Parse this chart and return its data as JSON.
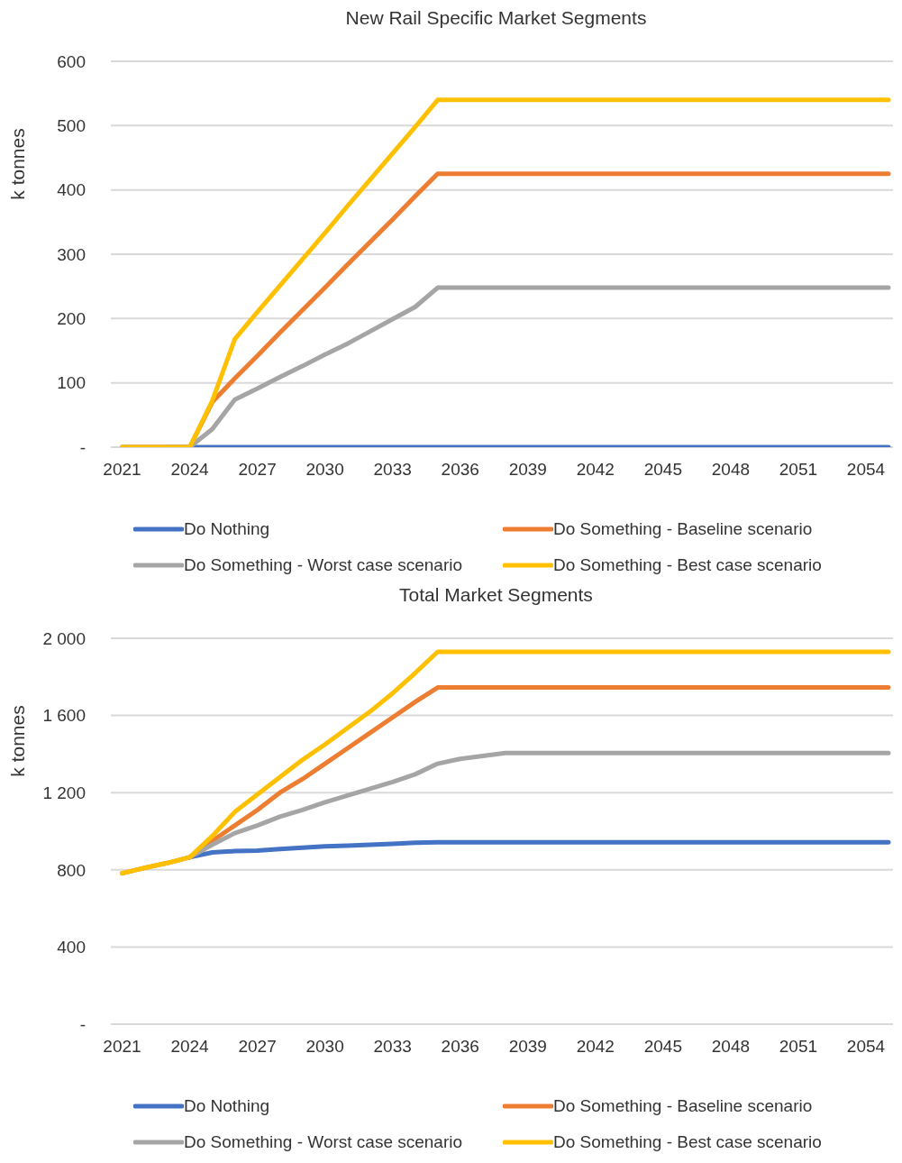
{
  "chart_data": [
    {
      "type": "line",
      "title": "New Rail Specific Market Segments",
      "ylabel": "k tonnes",
      "x": [
        2021,
        2022,
        2023,
        2024,
        2025,
        2026,
        2027,
        2028,
        2029,
        2030,
        2031,
        2032,
        2033,
        2034,
        2035,
        2036,
        2037,
        2038,
        2039,
        2040,
        2041,
        2042,
        2043,
        2044,
        2045,
        2046,
        2047,
        2048,
        2049,
        2050,
        2051,
        2052,
        2053,
        2054,
        2055
      ],
      "xlim": [
        2020.5,
        2055.2
      ],
      "xticks": [
        2021,
        2024,
        2027,
        2030,
        2033,
        2036,
        2039,
        2042,
        2045,
        2048,
        2051,
        2054
      ],
      "ylim": [
        0,
        600
      ],
      "yticks": [
        {
          "value": 0,
          "label": "-"
        },
        100,
        200,
        300,
        400,
        500,
        600
      ],
      "grid": "y",
      "legend": "bottom",
      "marker": "none",
      "line_style": "solid",
      "series": [
        {
          "name": "Do Nothing",
          "color": "#4472c4",
          "values": [
            null,
            null,
            0,
            0,
            0,
            0,
            0,
            0,
            0,
            0,
            0,
            0,
            0,
            0,
            0,
            0,
            0,
            0,
            0,
            0,
            0,
            0,
            0,
            0,
            0,
            0,
            0,
            0,
            0,
            0,
            0,
            0,
            0,
            0,
            0
          ]
        },
        {
          "name": "Do Something - Baseline scenario",
          "color": "#ed7d31",
          "values": [
            0,
            0,
            0,
            0,
            70,
            107,
            142,
            178,
            213,
            248,
            284,
            319,
            354,
            390,
            425,
            425,
            425,
            425,
            425,
            425,
            425,
            425,
            425,
            425,
            425,
            425,
            425,
            425,
            425,
            425,
            425,
            425,
            425,
            425,
            425
          ]
        },
        {
          "name": "Do Something - Worst case scenario",
          "color": "#a5a5a5",
          "values": [
            0,
            0,
            0,
            0,
            28,
            74,
            91,
            109,
            126,
            144,
            161,
            180,
            199,
            218,
            248,
            248,
            248,
            248,
            248,
            248,
            248,
            248,
            248,
            248,
            248,
            248,
            248,
            248,
            248,
            248,
            248,
            248,
            248,
            248,
            248
          ]
        },
        {
          "name": "Do Something - Best case scenario",
          "color": "#ffc000",
          "values": [
            0,
            0,
            0,
            0,
            72,
            168,
            210,
            251,
            292,
            333,
            375,
            416,
            457,
            498,
            540,
            540,
            540,
            540,
            540,
            540,
            540,
            540,
            540,
            540,
            540,
            540,
            540,
            540,
            540,
            540,
            540,
            540,
            540,
            540,
            540
          ]
        }
      ]
    },
    {
      "type": "line",
      "title": "Total Market Segments",
      "ylabel": "k tonnes",
      "x": [
        2021,
        2022,
        2023,
        2024,
        2025,
        2026,
        2027,
        2028,
        2029,
        2030,
        2031,
        2032,
        2033,
        2034,
        2035,
        2036,
        2037,
        2038,
        2039,
        2040,
        2041,
        2042,
        2043,
        2044,
        2045,
        2046,
        2047,
        2048,
        2049,
        2050,
        2051,
        2052,
        2053,
        2054,
        2055
      ],
      "xlim": [
        2020.5,
        2055.2
      ],
      "xticks": [
        2021,
        2024,
        2027,
        2030,
        2033,
        2036,
        2039,
        2042,
        2045,
        2048,
        2051,
        2054
      ],
      "ylim": [
        0,
        2000
      ],
      "yticks": [
        {
          "value": 0,
          "label": "-"
        },
        400,
        800,
        {
          "value": 1200,
          "label": "1 200"
        },
        {
          "value": 1600,
          "label": "1 600"
        },
        {
          "value": 2000,
          "label": "2 000"
        }
      ],
      "grid": "y",
      "legend": "bottom",
      "marker": "none",
      "line_style": "solid",
      "series": [
        {
          "name": "Do Nothing",
          "color": "#4472c4",
          "values": [
            null,
            null,
            null,
            865,
            890,
            897,
            900,
            908,
            915,
            922,
            925,
            930,
            935,
            940,
            943,
            943,
            943,
            943,
            943,
            943,
            943,
            943,
            943,
            943,
            943,
            943,
            943,
            943,
            943,
            943,
            943,
            943,
            943,
            943,
            943
          ]
        },
        {
          "name": "Do Something - Baseline scenario",
          "color": "#ed7d31",
          "values": [
            782,
            810,
            835,
            865,
            950,
            1030,
            1110,
            1200,
            1270,
            1350,
            1430,
            1510,
            1590,
            1670,
            1745,
            1745,
            1745,
            1745,
            1745,
            1745,
            1745,
            1745,
            1745,
            1745,
            1745,
            1745,
            1745,
            1745,
            1745,
            1745,
            1745,
            1745,
            1745,
            1745,
            1745
          ]
        },
        {
          "name": "Do Something - Worst case scenario",
          "color": "#a5a5a5",
          "values": [
            null,
            null,
            null,
            865,
            930,
            990,
            1030,
            1075,
            1110,
            1150,
            1185,
            1220,
            1255,
            1295,
            1350,
            1375,
            1390,
            1405,
            1405,
            1405,
            1405,
            1405,
            1405,
            1405,
            1405,
            1405,
            1405,
            1405,
            1405,
            1405,
            1405,
            1405,
            1405,
            1405,
            1405
          ]
        },
        {
          "name": "Do Something - Best case scenario",
          "color": "#ffc000",
          "values": [
            782,
            810,
            835,
            865,
            975,
            1100,
            1190,
            1280,
            1370,
            1450,
            1535,
            1620,
            1715,
            1820,
            1930,
            1930,
            1930,
            1930,
            1930,
            1930,
            1930,
            1930,
            1930,
            1930,
            1930,
            1930,
            1930,
            1930,
            1930,
            1930,
            1930,
            1930,
            1930,
            1930,
            1930
          ]
        }
      ]
    }
  ]
}
